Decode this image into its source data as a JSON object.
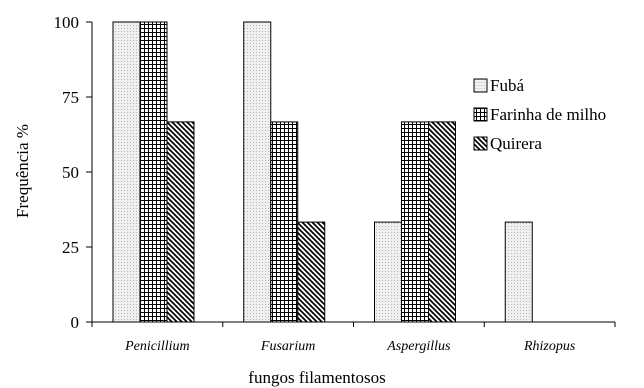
{
  "chart_data": {
    "type": "bar",
    "title": "",
    "xlabel": "fungos filamentosos",
    "ylabel": "Frequência %",
    "categories": [
      "Penicillium",
      "Fusarium",
      "Aspergillus",
      "Rhizopus"
    ],
    "ylim": [
      0,
      100
    ],
    "yticks": [
      0,
      25,
      50,
      75,
      100
    ],
    "grid": false,
    "legend_position": "right",
    "series": [
      {
        "name": "Fubá",
        "values": [
          100,
          100,
          33.3,
          33.3
        ],
        "pattern": "dots",
        "color": "#efefef"
      },
      {
        "name": "Farinha de milho",
        "values": [
          100,
          66.7,
          66.7,
          0
        ],
        "pattern": "grid",
        "color": "#ffffff"
      },
      {
        "name": "Quirera",
        "values": [
          66.7,
          33.3,
          66.7,
          0
        ],
        "pattern": "diagonal",
        "color": "#ffffff"
      }
    ]
  }
}
